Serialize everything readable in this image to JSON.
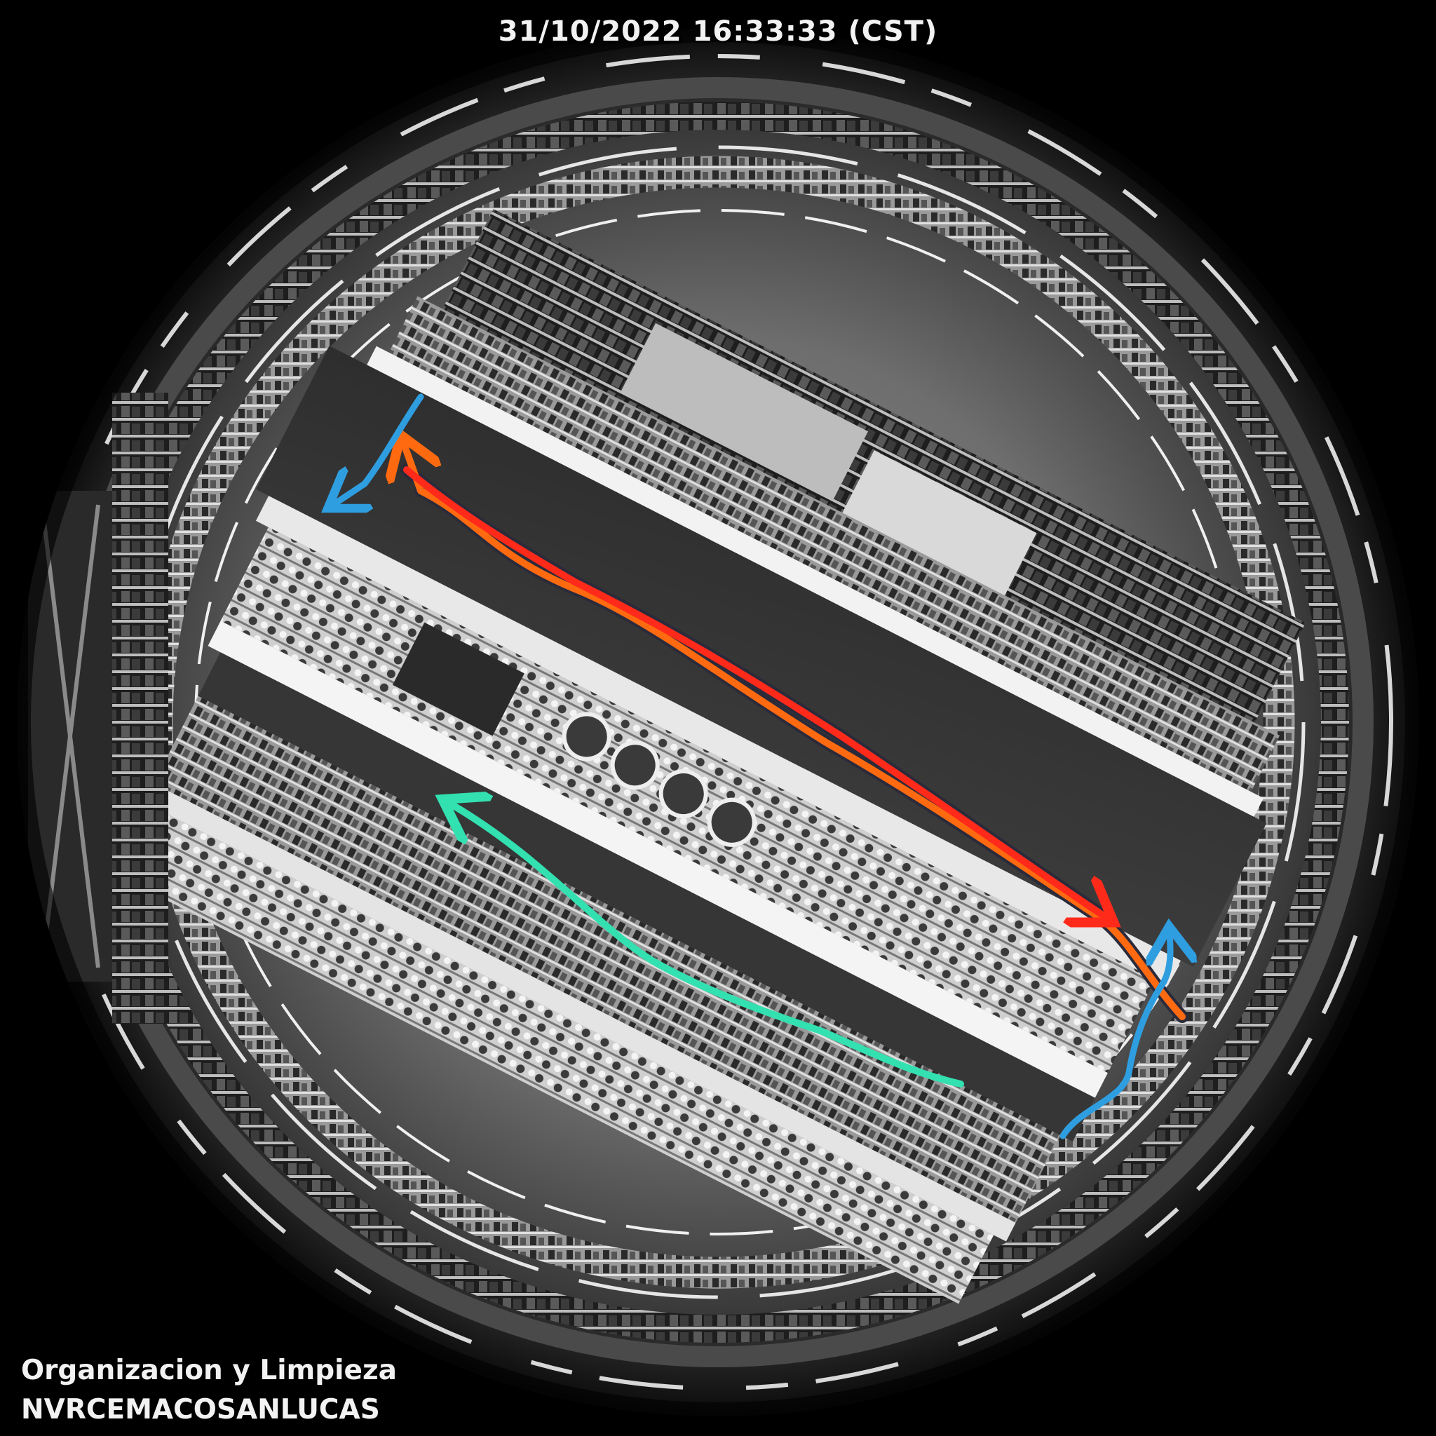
{
  "osd": {
    "timestamp": "31/10/2022 16:33:33 (CST)",
    "channel_name_line1": "Organizacion y Limpieza",
    "channel_name_line2": "NVRCEMACOSANLUCAS"
  },
  "annotations": {
    "colors": {
      "red": "#ff2a1a",
      "orange": "#ff6a10",
      "green": "#33e0b0",
      "blue": "#2f9ee0",
      "dark_outline": "#2a2a3a"
    },
    "arrows": [
      {
        "name": "red-path-arrow",
        "color": "red",
        "direction": "toward lower-right"
      },
      {
        "name": "orange-path-arrow",
        "color": "orange",
        "direction": "toward upper-left"
      },
      {
        "name": "green-path-arrow",
        "color": "green",
        "direction": "toward left"
      },
      {
        "name": "blue-upper-path-arrow",
        "color": "blue",
        "direction": "toward left"
      },
      {
        "name": "blue-lower-path-arrow",
        "color": "blue",
        "direction": "toward up"
      }
    ]
  },
  "scene": {
    "view": "fisheye ceiling camera",
    "palette": "grayscale"
  }
}
